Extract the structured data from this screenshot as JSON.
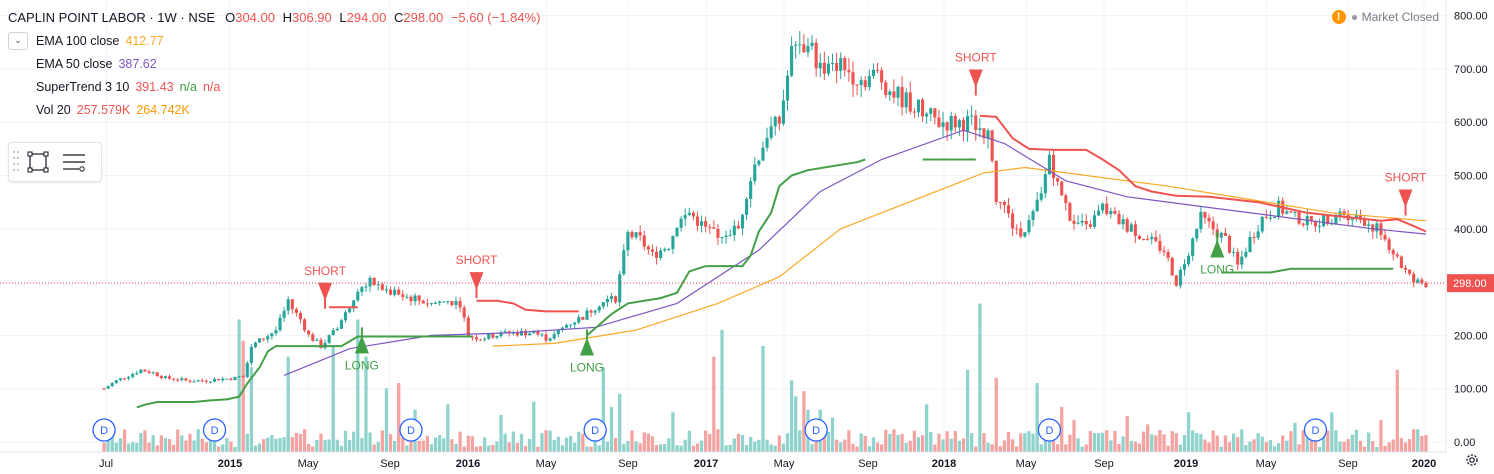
{
  "header": {
    "symbol": "CAPLIN POINT LABOR · 1W · NSE",
    "o_label": "O",
    "o": "304.00",
    "h_label": "H",
    "h": "306.90",
    "l_label": "L",
    "l": "294.00",
    "c_label": "C",
    "c": "298.00",
    "change": "−5.60 (−1.84%)"
  },
  "indicators": [
    {
      "name": "EMA 100 close",
      "v1": "412.77",
      "color": "#f9a825"
    },
    {
      "name": "EMA 50 close",
      "v1": "387.62",
      "color": "#7e57c2"
    },
    {
      "name": "SuperTrend 3 10",
      "v1": "391.43",
      "v2": "n/a",
      "v3": "n/a"
    },
    {
      "name": "Vol 20",
      "v1": "257.579K",
      "v2": "264.742K"
    }
  ],
  "status": {
    "text": "Market Closed"
  },
  "colors": {
    "up": "#26a69a",
    "down": "#ef5350",
    "volUp": "#8fd3cc",
    "volDown": "#f4a3a1",
    "ema100": "#f9a825",
    "ema50": "#7e57c2",
    "stUp": "#43a047",
    "stDown": "#ef5350"
  },
  "chart_data": {
    "type": "candlestick",
    "title": "CAPLIN POINT LABOR · 1W · NSE",
    "last_price_label": "298.00",
    "ylim": [
      0,
      800
    ],
    "y_ticks": [
      "800.00",
      "700.00",
      "600.00",
      "500.00",
      "400.00",
      "300.00",
      "200.00",
      "100.00",
      "0.00"
    ],
    "x_ticks": [
      "Jul",
      "2015",
      "May",
      "Sep",
      "2016",
      "May",
      "Sep",
      "2017",
      "May",
      "Sep",
      "2018",
      "May",
      "Sep",
      "2019",
      "May",
      "Sep",
      "2020"
    ],
    "price_path": [
      [
        0,
        100
      ],
      [
        3,
        115
      ],
      [
        6,
        125
      ],
      [
        9,
        135
      ],
      [
        12,
        130
      ],
      [
        15,
        120
      ],
      [
        18,
        118
      ],
      [
        20,
        115
      ],
      [
        24,
        115
      ],
      [
        28,
        118
      ],
      [
        32,
        120
      ],
      [
        34,
        125
      ],
      [
        36,
        180
      ],
      [
        40,
        200
      ],
      [
        42,
        210
      ],
      [
        45,
        260
      ],
      [
        48,
        230
      ],
      [
        50,
        200
      ],
      [
        53,
        180
      ],
      [
        56,
        205
      ],
      [
        59,
        240
      ],
      [
        62,
        290
      ],
      [
        65,
        300
      ],
      [
        70,
        280
      ],
      [
        75,
        270
      ],
      [
        80,
        260
      ],
      [
        84,
        265
      ],
      [
        87,
        260
      ],
      [
        89,
        200
      ],
      [
        92,
        195
      ],
      [
        95,
        200
      ],
      [
        100,
        205
      ],
      [
        105,
        205
      ],
      [
        108,
        195
      ],
      [
        110,
        200
      ],
      [
        113,
        220
      ],
      [
        117,
        235
      ],
      [
        121,
        260
      ],
      [
        125,
        270
      ],
      [
        128,
        390
      ],
      [
        131,
        380
      ],
      [
        134,
        350
      ],
      [
        138,
        370
      ],
      [
        140,
        410
      ],
      [
        143,
        430
      ],
      [
        147,
        400
      ],
      [
        151,
        390
      ],
      [
        155,
        400
      ],
      [
        157,
        470
      ],
      [
        159,
        520
      ],
      [
        162,
        580
      ],
      [
        165,
        600
      ],
      [
        168,
        730
      ],
      [
        172,
        750
      ],
      [
        175,
        700
      ],
      [
        178,
        720
      ],
      [
        181,
        700
      ],
      [
        185,
        680
      ],
      [
        189,
        690
      ],
      [
        192,
        660
      ],
      [
        196,
        640
      ],
      [
        200,
        620
      ],
      [
        204,
        600
      ],
      [
        208,
        600
      ],
      [
        212,
        600
      ],
      [
        216,
        580
      ],
      [
        218,
        450
      ],
      [
        220,
        440
      ],
      [
        223,
        390
      ],
      [
        226,
        410
      ],
      [
        229,
        460
      ],
      [
        231,
        540
      ],
      [
        233,
        480
      ],
      [
        236,
        420
      ],
      [
        240,
        400
      ],
      [
        244,
        440
      ],
      [
        247,
        420
      ],
      [
        251,
        400
      ],
      [
        255,
        380
      ],
      [
        259,
        360
      ],
      [
        262,
        300
      ],
      [
        265,
        360
      ],
      [
        268,
        420
      ],
      [
        271,
        400
      ],
      [
        274,
        380
      ],
      [
        277,
        330
      ],
      [
        280,
        380
      ],
      [
        283,
        420
      ],
      [
        287,
        440
      ],
      [
        291,
        420
      ],
      [
        295,
        410
      ],
      [
        299,
        420
      ],
      [
        303,
        430
      ],
      [
        307,
        420
      ],
      [
        311,
        400
      ],
      [
        314,
        370
      ],
      [
        317,
        330
      ],
      [
        320,
        300
      ],
      [
        323,
        298
      ]
    ],
    "ema50": [
      [
        44,
        125
      ],
      [
        60,
        175
      ],
      [
        80,
        200
      ],
      [
        100,
        205
      ],
      [
        120,
        215
      ],
      [
        140,
        260
      ],
      [
        160,
        360
      ],
      [
        175,
        470
      ],
      [
        190,
        530
      ],
      [
        210,
        585
      ],
      [
        220,
        560
      ],
      [
        235,
        490
      ],
      [
        250,
        460
      ],
      [
        270,
        440
      ],
      [
        290,
        420
      ],
      [
        310,
        400
      ],
      [
        323,
        390
      ]
    ],
    "ema100": [
      [
        95,
        180
      ],
      [
        110,
        185
      ],
      [
        130,
        210
      ],
      [
        150,
        260
      ],
      [
        165,
        310
      ],
      [
        180,
        400
      ],
      [
        200,
        460
      ],
      [
        215,
        505
      ],
      [
        225,
        515
      ],
      [
        240,
        500
      ],
      [
        260,
        480
      ],
      [
        280,
        455
      ],
      [
        300,
        430
      ],
      [
        323,
        415
      ]
    ],
    "supertrend_up": [
      [
        8,
        65
      ],
      [
        10,
        70
      ],
      [
        13,
        75
      ],
      [
        18,
        75
      ],
      [
        22,
        75
      ],
      [
        26,
        78
      ],
      [
        30,
        80
      ],
      [
        33,
        85
      ],
      [
        35,
        110
      ],
      [
        38,
        140
      ],
      [
        40,
        170
      ],
      [
        42,
        180
      ],
      [
        46,
        180
      ],
      [
        50,
        180
      ],
      [
        54,
        180
      ],
      [
        58,
        180
      ],
      [
        62,
        198
      ],
      [
        66,
        198
      ],
      [
        70,
        198
      ],
      [
        75,
        198
      ],
      [
        80,
        198
      ],
      [
        85,
        198
      ],
      [
        90,
        198
      ],
      [
        118,
        200
      ],
      [
        121,
        220
      ],
      [
        124,
        240
      ],
      [
        128,
        260
      ],
      [
        132,
        265
      ],
      [
        136,
        270
      ],
      [
        140,
        280
      ],
      [
        143,
        320
      ],
      [
        147,
        330
      ],
      [
        152,
        330
      ],
      [
        156,
        330
      ],
      [
        158,
        350
      ],
      [
        160,
        395
      ],
      [
        163,
        430
      ],
      [
        165,
        480
      ],
      [
        168,
        500
      ],
      [
        172,
        510
      ],
      [
        176,
        515
      ],
      [
        180,
        520
      ],
      [
        184,
        525
      ],
      [
        186,
        530
      ],
      [
        200,
        530
      ],
      [
        210,
        530
      ],
      [
        213,
        530
      ],
      [
        273,
        318
      ],
      [
        278,
        318
      ],
      [
        285,
        318
      ],
      [
        290,
        325
      ],
      [
        300,
        325
      ],
      [
        310,
        325
      ],
      [
        315,
        325
      ]
    ],
    "supertrend_down": [
      [
        55,
        253
      ],
      [
        60,
        253
      ],
      [
        62,
        253
      ],
      [
        91,
        265
      ],
      [
        96,
        265
      ],
      [
        100,
        260
      ],
      [
        103,
        248
      ],
      [
        108,
        245
      ],
      [
        112,
        245
      ],
      [
        116,
        245
      ],
      [
        214,
        612
      ],
      [
        218,
        610
      ],
      [
        222,
        570
      ],
      [
        226,
        550
      ],
      [
        232,
        548
      ],
      [
        240,
        548
      ],
      [
        244,
        530
      ],
      [
        248,
        510
      ],
      [
        252,
        480
      ],
      [
        256,
        470
      ],
      [
        262,
        462
      ],
      [
        270,
        460
      ],
      [
        276,
        455
      ],
      [
        282,
        450
      ],
      [
        288,
        440
      ],
      [
        294,
        430
      ],
      [
        300,
        425
      ],
      [
        306,
        420
      ],
      [
        312,
        415
      ],
      [
        316,
        418
      ],
      [
        320,
        405
      ],
      [
        323,
        395
      ]
    ],
    "signals": [
      {
        "type": "SHORT",
        "bar": 54,
        "price": 265
      },
      {
        "type": "LONG",
        "bar": 63,
        "price": 200
      },
      {
        "type": "SHORT",
        "bar": 91,
        "price": 285
      },
      {
        "type": "LONG",
        "bar": 118,
        "price": 196
      },
      {
        "type": "SHORT",
        "bar": 213,
        "price": 665
      },
      {
        "type": "LONG",
        "bar": 272,
        "price": 380
      },
      {
        "type": "SHORT",
        "bar": 318,
        "price": 440
      }
    ],
    "dividends": [
      {
        "label": "D",
        "bar": 0
      },
      {
        "label": "D",
        "bar": 27
      },
      {
        "label": "D",
        "bar": 75
      },
      {
        "label": "D",
        "bar": 120
      },
      {
        "label": "D",
        "bar": 174
      },
      {
        "label": "D",
        "bar": 231
      },
      {
        "label": "D",
        "bar": 296
      }
    ],
    "volume_spikes": [
      [
        33,
        250
      ],
      [
        34,
        210
      ],
      [
        36,
        160
      ],
      [
        45,
        180
      ],
      [
        56,
        200
      ],
      [
        62,
        250
      ],
      [
        64,
        180
      ],
      [
        69,
        120
      ],
      [
        72,
        130
      ],
      [
        76,
        80
      ],
      [
        84,
        90
      ],
      [
        97,
        70
      ],
      [
        105,
        95
      ],
      [
        122,
        160
      ],
      [
        124,
        85
      ],
      [
        126,
        110
      ],
      [
        139,
        75
      ],
      [
        149,
        180
      ],
      [
        151,
        230
      ],
      [
        161,
        200
      ],
      [
        168,
        135
      ],
      [
        169,
        105
      ],
      [
        171,
        115
      ],
      [
        172,
        80
      ],
      [
        175,
        80
      ],
      [
        178,
        65
      ],
      [
        201,
        90
      ],
      [
        211,
        155
      ],
      [
        214,
        280
      ],
      [
        218,
        140
      ],
      [
        228,
        130
      ],
      [
        234,
        85
      ],
      [
        237,
        60
      ],
      [
        250,
        68
      ],
      [
        255,
        52
      ],
      [
        265,
        75
      ],
      [
        291,
        55
      ],
      [
        300,
        75
      ],
      [
        312,
        60
      ],
      [
        316,
        155
      ]
    ]
  }
}
